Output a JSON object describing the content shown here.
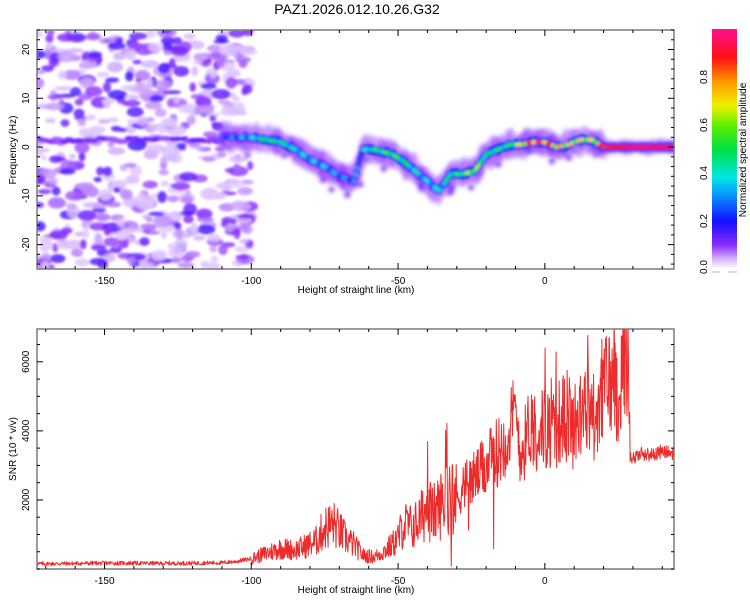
{
  "figure_title": "PAZ1.2026.012.10.26.G32",
  "chart_data": [
    {
      "type": "heatmap",
      "name": "spectrogram",
      "title": "PAZ1.2026.012.10.26.G32",
      "xlabel": "Height of straight line (km)",
      "ylabel": "Frequency (Hz)",
      "xlim": [
        -173,
        44
      ],
      "ylim": [
        -25,
        24
      ],
      "xticks": [
        -150,
        -100,
        -50,
        0
      ],
      "xtick_labels": [
        "-150",
        "-100",
        "-50",
        "0"
      ],
      "yticks": [
        -20,
        -10,
        0,
        10,
        20
      ],
      "ytick_labels": [
        "-20",
        "-10",
        "0",
        "10",
        "20"
      ],
      "noise_region": {
        "x_from": -173,
        "x_to": -100,
        "description": "diffuse low-amplitude noise"
      },
      "signal_ridge": {
        "description": "frequency of peak spectral amplitude vs height",
        "x": [
          -110,
          -100,
          -95,
          -90,
          -85,
          -80,
          -75,
          -70,
          -65,
          -62,
          -58,
          -52,
          -48,
          -44,
          -40,
          -36,
          -32,
          -28,
          -24,
          -20,
          -16,
          -12,
          -8,
          -4,
          0,
          4,
          8,
          12,
          16,
          20,
          25,
          30,
          35,
          40,
          44
        ],
        "y": [
          2,
          2,
          1.5,
          1,
          -0.5,
          -2.5,
          -4,
          -6,
          -7,
          -0.5,
          -0.5,
          -1.5,
          -3,
          -5,
          -7,
          -9,
          -5.5,
          -5.5,
          -5,
          -1.5,
          -0.5,
          0.5,
          0.5,
          1,
          1,
          0,
          0.5,
          1.5,
          1.5,
          0,
          0,
          0,
          0,
          0,
          0
        ],
        "amplitude": [
          0.25,
          0.35,
          0.5,
          0.45,
          0.4,
          0.35,
          0.35,
          0.3,
          0.3,
          0.35,
          0.5,
          0.55,
          0.5,
          0.4,
          0.35,
          0.4,
          0.45,
          0.55,
          0.65,
          0.45,
          0.5,
          0.5,
          0.7,
          0.9,
          0.9,
          0.75,
          0.7,
          0.7,
          0.65,
          0.85,
          0.9,
          0.95,
          0.95,
          0.95,
          0.95
        ]
      },
      "colorbar": {
        "label": "Normalized spectral amplitude",
        "range": [
          0,
          1
        ],
        "ticks": [
          0.0,
          0.2,
          0.4,
          0.6,
          0.8
        ],
        "tick_labels": [
          "0.0",
          "0.2",
          "0.4",
          "0.6",
          "0.8"
        ],
        "colormap": "rainbow (white-violet-blue-cyan-green-yellow-red-magenta)"
      }
    },
    {
      "type": "line",
      "name": "snr",
      "xlabel": "Height of straight line (km)",
      "ylabel": "SNR (10 * v/v)",
      "xlim": [
        -173,
        44
      ],
      "ylim": [
        0,
        6950
      ],
      "xticks": [
        -150,
        -100,
        -50,
        0
      ],
      "xtick_labels": [
        "-150",
        "-100",
        "-50",
        "0"
      ],
      "yticks": [
        2000,
        4000,
        6000
      ],
      "ytick_labels": [
        "2000",
        "4000",
        "6000"
      ],
      "series": [
        {
          "name": "SNR",
          "color": "#ee2b2b",
          "x": [
            -173,
            -160,
            -150,
            -140,
            -130,
            -120,
            -110,
            -105,
            -100,
            -95,
            -90,
            -85,
            -82,
            -78,
            -75,
            -72,
            -70,
            -68,
            -65,
            -62,
            -58,
            -55,
            -52,
            -50,
            -48,
            -45,
            -42,
            -40,
            -38,
            -35,
            -32,
            -30,
            -28,
            -25,
            -22,
            -20,
            -18,
            -15,
            -12,
            -10,
            -8,
            -6,
            -5,
            -3,
            0,
            3,
            5,
            8,
            10,
            12,
            15,
            18,
            20,
            22,
            25,
            27,
            28.5,
            29,
            30,
            33,
            36,
            40,
            44
          ],
          "y": [
            150,
            160,
            170,
            170,
            160,
            170,
            180,
            220,
            300,
            450,
            600,
            550,
            650,
            800,
            1200,
            1300,
            1100,
            900,
            700,
            400,
            350,
            500,
            700,
            900,
            1300,
            1200,
            1500,
            1800,
            1600,
            1900,
            2200,
            2000,
            2400,
            2600,
            2800,
            3000,
            3200,
            3500,
            4000,
            4500,
            3300,
            3900,
            4300,
            4000,
            4100,
            3900,
            4300,
            4500,
            4000,
            4300,
            4700,
            4200,
            5500,
            5400,
            5200,
            5800,
            6600,
            3300,
            3200,
            3350,
            3300,
            3400,
            3350
          ]
        }
      ]
    }
  ]
}
